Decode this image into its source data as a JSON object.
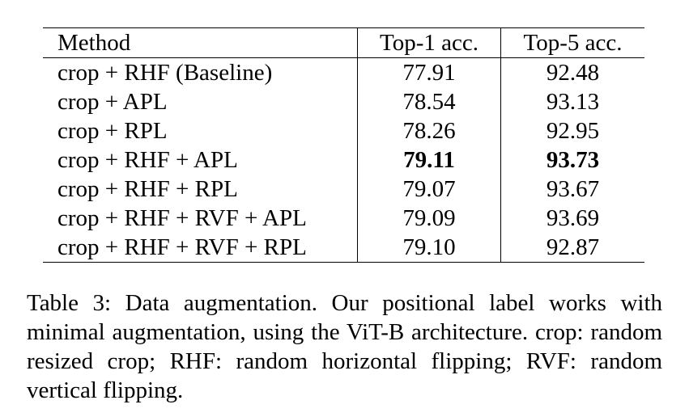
{
  "table": {
    "columns": [
      "Method",
      "Top-1 acc.",
      "Top-5 acc."
    ],
    "rows": [
      {
        "method": "crop + RHF (Baseline)",
        "top1": "77.91",
        "top5": "92.48",
        "bold": false
      },
      {
        "method": "crop + APL",
        "top1": "78.54",
        "top5": "93.13",
        "bold": false
      },
      {
        "method": "crop + RPL",
        "top1": "78.26",
        "top5": "92.95",
        "bold": false
      },
      {
        "method": "crop + RHF + APL",
        "top1": "79.11",
        "top5": "93.73",
        "bold": true
      },
      {
        "method": "crop + RHF + RPL",
        "top1": "79.07",
        "top5": "93.67",
        "bold": false
      },
      {
        "method": "crop + RHF + RVF + APL",
        "top1": "79.09",
        "top5": "93.69",
        "bold": false
      },
      {
        "method": "crop + RHF + RVF + RPL",
        "top1": "79.10",
        "top5": "92.87",
        "bold": false
      }
    ]
  },
  "caption": {
    "text": "Table 3: Data augmentation. Our positional label works with minimal augmentation, using the ViT-B architecture. crop: random resized crop; RHF: random horizontal flip­ping; RVF: random vertical flipping."
  }
}
